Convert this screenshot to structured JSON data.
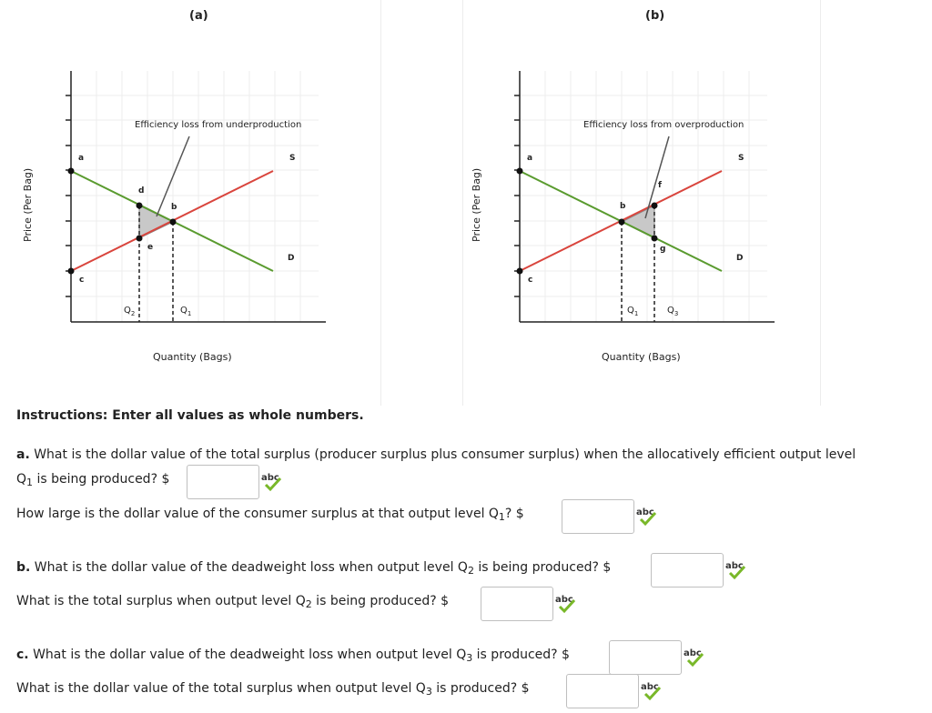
{
  "panels": [
    {
      "title": "(a)",
      "annotation": "Efficiency loss from underproduction",
      "ylabel": "Price (Per Bag)",
      "xlabel": "Quantity (Bags)",
      "curve_labels": {
        "supply": "S",
        "demand": "D"
      },
      "points": [
        "a",
        "c",
        "d",
        "b",
        "e"
      ],
      "ticks": {
        "q_left": "Q",
        "q_left_sub": "2",
        "q_right": "Q",
        "q_right_sub": "1"
      }
    },
    {
      "title": "(b)",
      "annotation": "Efficiency loss from overproduction",
      "ylabel": "Price (Per Bag)",
      "xlabel": "Quantity (Bags)",
      "curve_labels": {
        "supply": "S",
        "demand": "D"
      },
      "points": [
        "a",
        "c",
        "b",
        "f",
        "g"
      ],
      "ticks": {
        "q_left": "Q",
        "q_left_sub": "1",
        "q_right": "Q",
        "q_right_sub": "3"
      }
    }
  ],
  "colors": {
    "supply": "#d9453d",
    "demand": "#5a9b2f",
    "triangle": "#c8c8c8",
    "accent_check": "#79b829"
  },
  "instructions": "Instructions: Enter all values as whole numbers.",
  "questions": {
    "a1_lead": "a.",
    "a1_text": "What is the dollar value of the total surplus (producer surplus plus consumer surplus) when the allocatively efficient output level",
    "a1_line2_pre": "Q",
    "a1_line2_sub": "1",
    "a1_line2_post": " is being produced? $",
    "a2_pre": "How large is the dollar value of the consumer surplus at that output level Q",
    "a2_sub": "1",
    "a2_post": "? $",
    "b1_lead": "b.",
    "b1_pre": "What is the dollar value of the deadweight loss when output level Q",
    "b1_sub": "2",
    "b1_post": " is being produced? $",
    "b2_pre": "What is the total surplus when output level Q",
    "b2_sub": "2",
    "b2_post": " is being produced? $",
    "c1_lead": "c.",
    "c1_pre": "What is the dollar value of the deadweight loss when output level Q",
    "c1_sub": "3",
    "c1_post": " is produced? $",
    "c2_pre": "What is the dollar value of the total surplus when output level Q",
    "c2_sub": "3",
    "c2_post": " is produced? $"
  },
  "spell_icon_label": "abc",
  "answers": {
    "a1": "",
    "a2": "",
    "b1": "",
    "b2": "",
    "c1": "",
    "c2": ""
  }
}
